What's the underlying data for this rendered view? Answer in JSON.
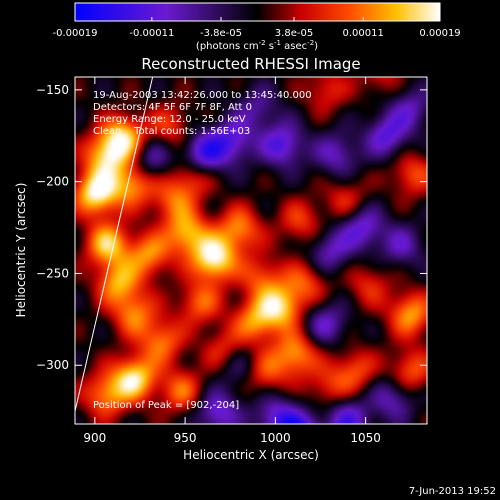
{
  "colorbar": {
    "tick_labels": [
      "-0.00019",
      "-0.00011",
      "-3.8e-05",
      "3.8e-05",
      "0.00011",
      "0.00019"
    ],
    "tick_values": [
      -0.00019,
      -0.00011,
      -3.8e-05,
      3.8e-05,
      0.00011,
      0.00019
    ],
    "range": [
      -0.00019,
      0.00019
    ],
    "unit_label_parts": [
      "(photons cm",
      "-2",
      " s",
      "-1",
      " asec",
      "-2",
      ")"
    ]
  },
  "chart_data": {
    "type": "heatmap",
    "title": "Reconstructed RHESSI Image",
    "xlabel": "Heliocentric X (arcsec)",
    "ylabel": "Heliocentric Y (arcsec)",
    "xlim": [
      889,
      1084
    ],
    "ylim": [
      -332,
      -143
    ],
    "xticks": [
      900,
      950,
      1000,
      1050
    ],
    "xtick_labels": [
      "900",
      "950",
      "1000",
      "1050"
    ],
    "yticks": [
      -300,
      -250,
      -200,
      -150
    ],
    "ytick_labels": [
      "−300",
      "−250",
      "−200",
      "−150"
    ],
    "info_lines": [
      "19-Aug-2003 13:42:26.000 to 13:45:40.000",
      "Detectors: 4F 5F 6F 7F 8F, Att 0",
      "Energy Range: 12.0 - 25.0 keV",
      "Clean    Total counts: 1.56E+03"
    ],
    "peak_label": "Position of Peak = [902,-204]",
    "peak": [
      902,
      -204
    ],
    "limb_line": {
      "from": [
        889,
        -325
      ],
      "to": [
        932,
        -143
      ]
    },
    "grid": false,
    "sources": [
      [
        901,
        -206,
        0.95
      ],
      [
        916,
        -176,
        0.8
      ],
      [
        906,
        -186,
        0.7
      ],
      [
        921,
        -201,
        0.65
      ],
      [
        907,
        -234,
        0.75
      ],
      [
        913,
        -255,
        0.65
      ],
      [
        930,
        -240,
        0.6
      ],
      [
        922,
        -272,
        0.55
      ],
      [
        937,
        -287,
        0.55
      ],
      [
        922,
        -307,
        0.85
      ],
      [
        906,
        -316,
        0.6
      ],
      [
        948,
        -314,
        0.5
      ],
      [
        966,
        -242,
        0.95
      ],
      [
        951,
        -228,
        0.7
      ],
      [
        980,
        -226,
        0.6
      ],
      [
        958,
        -266,
        0.5
      ],
      [
        989,
        -276,
        0.6
      ],
      [
        1003,
        -268,
        0.75
      ],
      [
        992,
        -252,
        0.45
      ],
      [
        954,
        -197,
        0.45
      ],
      [
        943,
        -210,
        0.45
      ],
      [
        942,
        -170,
        0.4
      ],
      [
        972,
        -292,
        0.4
      ],
      [
        994,
        -304,
        0.45
      ],
      [
        1017,
        -255,
        0.45
      ],
      [
        1014,
        -222,
        0.4
      ],
      [
        1011,
        -294,
        0.65
      ],
      [
        1029,
        -312,
        0.35
      ],
      [
        1044,
        -303,
        0.45
      ],
      [
        1052,
        -256,
        0.35
      ],
      [
        1075,
        -272,
        0.65
      ],
      [
        1075,
        -303,
        0.5
      ],
      [
        1039,
        -210,
        0.35
      ],
      [
        1076,
        -196,
        0.45
      ],
      [
        1028,
        -150,
        0.35
      ],
      [
        1058,
        -142,
        0.3
      ],
      [
        931,
        -188,
        -0.45
      ],
      [
        960,
        -185,
        -0.7
      ],
      [
        976,
        -178,
        -0.55
      ],
      [
        1004,
        -180,
        -0.6
      ],
      [
        1034,
        -185,
        -0.45
      ],
      [
        1062,
        -175,
        -0.55
      ],
      [
        990,
        -160,
        -0.35
      ],
      [
        1048,
        -225,
        -0.55
      ],
      [
        1070,
        -235,
        -0.4
      ],
      [
        1030,
        -238,
        -0.45
      ],
      [
        968,
        -326,
        -0.55
      ],
      [
        1000,
        -328,
        -0.5
      ],
      [
        1040,
        -330,
        -0.6
      ],
      [
        1065,
        -318,
        -0.45
      ],
      [
        1028,
        -277,
        -0.45
      ],
      [
        980,
        -300,
        -0.35
      ],
      [
        1013,
        -338,
        -0.85
      ],
      [
        1075,
        -160,
        -0.4
      ]
    ]
  },
  "footer": {
    "timestamp": "7-Jun-2013 19:52"
  }
}
